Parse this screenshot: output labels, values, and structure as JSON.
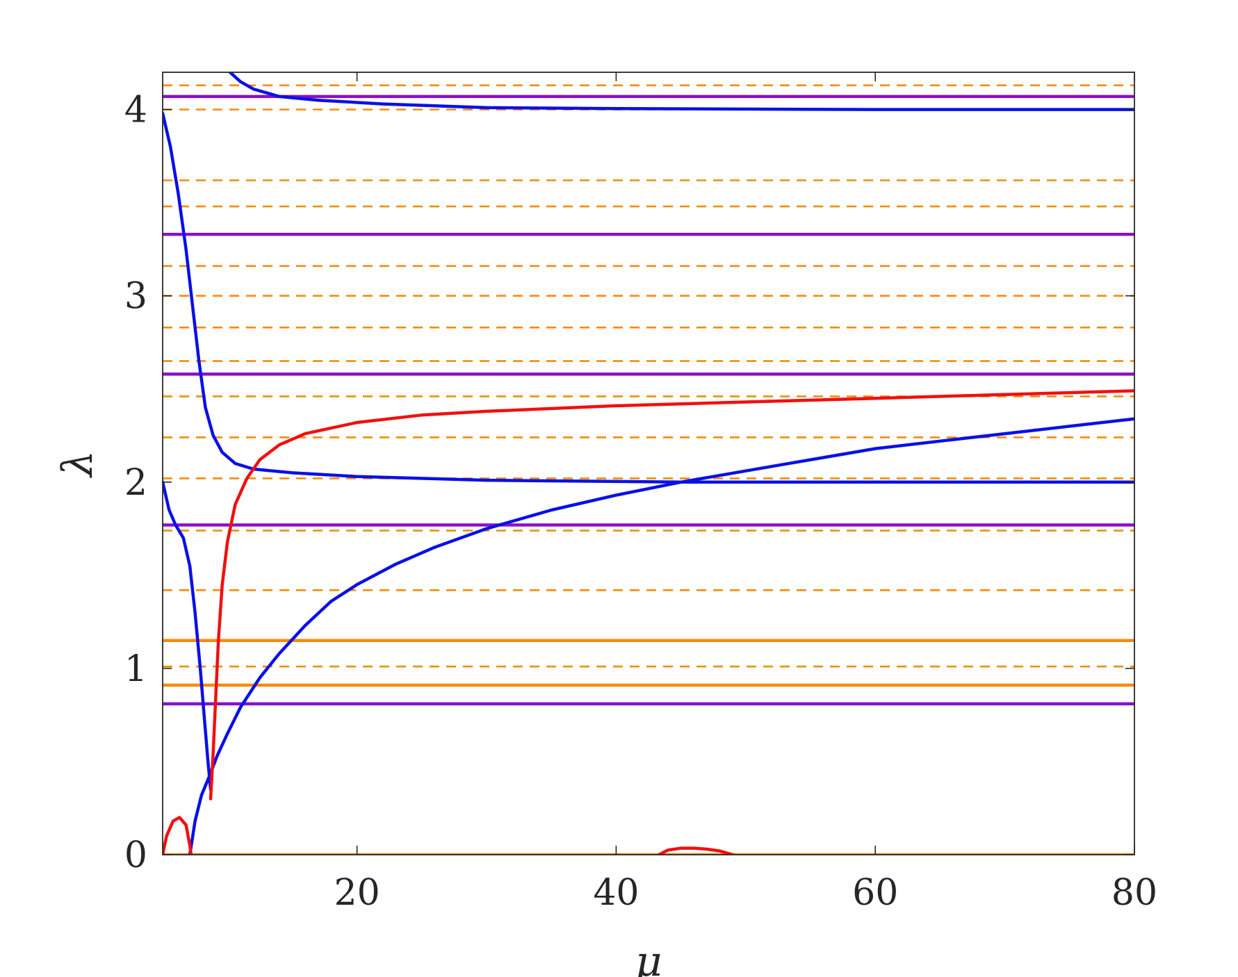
{
  "chart_data": {
    "type": "line",
    "xlabel": "μ",
    "ylabel": "λ",
    "xlim": [
      5,
      80
    ],
    "ylim": [
      0,
      4.2
    ],
    "xticks": [
      20,
      40,
      60,
      80
    ],
    "yticks": [
      0,
      1,
      2,
      3,
      4
    ],
    "grid": false,
    "legend": "none",
    "colors": {
      "blue": "#0a10e6",
      "red": "#f01010",
      "purple": "#8a10c8",
      "orange": "#f58b0c",
      "axis": "#262626"
    },
    "hlines_purple_solid": [
      0.81,
      1.77,
      2.58,
      3.33,
      4.07
    ],
    "hlines_orange_solid": [
      0,
      0.91,
      1.15
    ],
    "hlines_orange_dashed": [
      1.01,
      1.42,
      1.74,
      2.02,
      2.24,
      2.46,
      2.65,
      2.83,
      3.0,
      3.16,
      3.48,
      3.62,
      4.0,
      4.13
    ],
    "series": [
      {
        "color": "blue",
        "points": [
          [
            10.2,
            4.2
          ],
          [
            11,
            4.15
          ],
          [
            12,
            4.11
          ],
          [
            14,
            4.07
          ],
          [
            17,
            4.05
          ],
          [
            22,
            4.03
          ],
          [
            30,
            4.01
          ],
          [
            40,
            4.005
          ],
          [
            60,
            4.0
          ],
          [
            80,
            4.0
          ]
        ]
      },
      {
        "color": "blue",
        "points": [
          [
            5,
            3.98
          ],
          [
            5.6,
            3.8
          ],
          [
            6.2,
            3.55
          ],
          [
            6.8,
            3.25
          ],
          [
            7.3,
            2.95
          ],
          [
            7.8,
            2.65
          ],
          [
            8.3,
            2.4
          ],
          [
            8.9,
            2.25
          ],
          [
            9.6,
            2.16
          ],
          [
            10.6,
            2.1
          ],
          [
            12,
            2.07
          ],
          [
            15,
            2.05
          ],
          [
            20,
            2.03
          ],
          [
            30,
            2.01
          ],
          [
            45,
            2.0
          ],
          [
            60,
            2.0
          ],
          [
            80,
            2.0
          ]
        ]
      },
      {
        "color": "blue",
        "points": [
          [
            5,
            2.0
          ],
          [
            5.5,
            1.85
          ],
          [
            6,
            1.77
          ],
          [
            6.6,
            1.7
          ],
          [
            7.1,
            1.55
          ],
          [
            7.5,
            1.3
          ],
          [
            7.9,
            1.0
          ],
          [
            8.2,
            0.75
          ],
          [
            8.5,
            0.5
          ],
          [
            8.7,
            0.35
          ]
        ]
      },
      {
        "color": "blue",
        "points": [
          [
            7.1,
            0
          ],
          [
            7.5,
            0.18
          ],
          [
            8,
            0.32
          ],
          [
            8.6,
            0.42
          ],
          [
            9.2,
            0.53
          ],
          [
            10,
            0.65
          ],
          [
            11,
            0.79
          ],
          [
            12.5,
            0.95
          ],
          [
            14,
            1.08
          ],
          [
            16,
            1.23
          ],
          [
            18,
            1.36
          ],
          [
            20,
            1.45
          ],
          [
            23,
            1.56
          ],
          [
            26,
            1.65
          ],
          [
            30,
            1.75
          ],
          [
            35,
            1.85
          ],
          [
            40,
            1.93
          ],
          [
            45,
            2.0
          ],
          [
            50,
            2.06
          ],
          [
            55,
            2.12
          ],
          [
            60,
            2.18
          ],
          [
            65,
            2.22
          ],
          [
            70,
            2.26
          ],
          [
            75,
            2.3
          ],
          [
            80,
            2.34
          ]
        ]
      },
      {
        "color": "red",
        "points": [
          [
            5,
            0
          ],
          [
            5.3,
            0.1
          ],
          [
            5.8,
            0.18
          ],
          [
            6.3,
            0.2
          ],
          [
            6.8,
            0.16
          ],
          [
            7.1,
            0.05
          ],
          [
            7.2,
            0
          ]
        ]
      },
      {
        "color": "red",
        "points": [
          [
            8.7,
            0.3
          ],
          [
            8.9,
            0.55
          ],
          [
            9.1,
            0.85
          ],
          [
            9.3,
            1.15
          ],
          [
            9.6,
            1.45
          ],
          [
            10,
            1.68
          ],
          [
            10.6,
            1.88
          ],
          [
            11.5,
            2.02
          ],
          [
            12.5,
            2.12
          ],
          [
            14,
            2.2
          ],
          [
            16,
            2.26
          ],
          [
            20,
            2.32
          ],
          [
            25,
            2.36
          ],
          [
            30,
            2.38
          ],
          [
            40,
            2.41
          ],
          [
            50,
            2.43
          ],
          [
            60,
            2.45
          ],
          [
            70,
            2.47
          ],
          [
            80,
            2.49
          ]
        ]
      },
      {
        "color": "red",
        "points": [
          [
            43.3,
            0
          ],
          [
            44,
            0.025
          ],
          [
            45,
            0.035
          ],
          [
            46,
            0.035
          ],
          [
            47,
            0.03
          ],
          [
            48,
            0.02
          ],
          [
            49,
            0
          ]
        ]
      }
    ]
  }
}
